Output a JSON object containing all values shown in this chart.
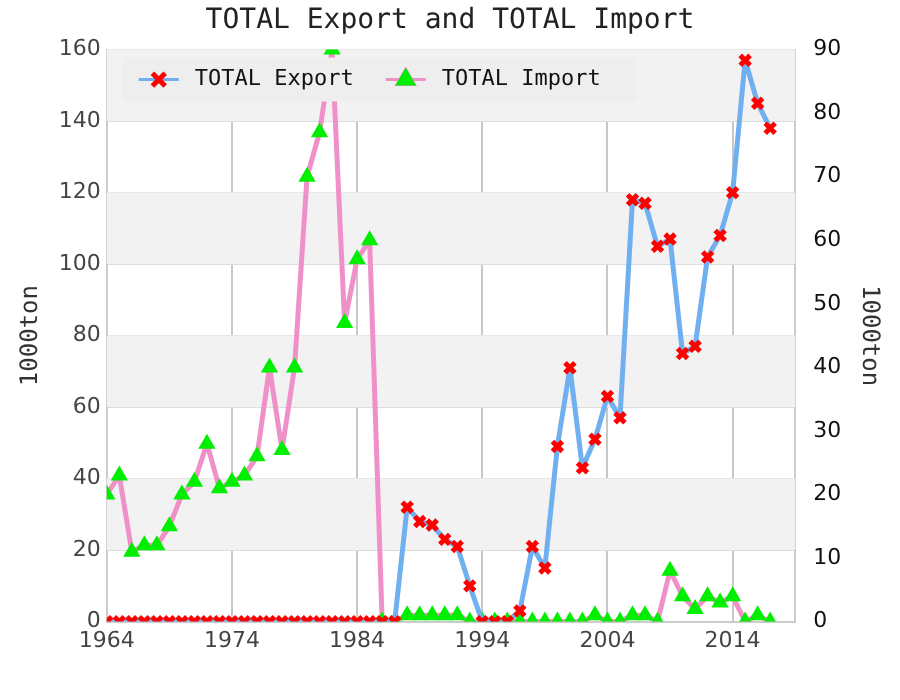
{
  "chart_data": {
    "type": "line",
    "title": "TOTAL Export and TOTAL Import",
    "ylabel": "1000ton",
    "y2label": "1000ton",
    "x": [
      1964,
      1965,
      1966,
      1967,
      1968,
      1969,
      1970,
      1971,
      1972,
      1973,
      1974,
      1975,
      1976,
      1977,
      1978,
      1979,
      1980,
      1981,
      1982,
      1983,
      1984,
      1985,
      1986,
      1987,
      1988,
      1989,
      1990,
      1991,
      1992,
      1993,
      1994,
      1995,
      1996,
      1997,
      1998,
      1999,
      2000,
      2001,
      2002,
      2003,
      2004,
      2005,
      2006,
      2007,
      2008,
      2009,
      2010,
      2011,
      2012,
      2013,
      2014,
      2015,
      2016,
      2017
    ],
    "series": [
      {
        "name": "TOTAL Export",
        "color": "#70b0f0",
        "marker": "cross",
        "colors": [
          "#ff0000",
          "#ff0000",
          "#ff0000",
          "#ff0000",
          "#ff0000",
          "#ff0000",
          "#ff0000",
          "#ff0000",
          "#ff0000",
          "#ff0000",
          "#ff0000",
          "#ff0000",
          "#ff0000",
          "#ff0000",
          "#ff0000",
          "#ff0000",
          "#ff0000",
          "#ff0000",
          "#ff0000",
          "#ff0000",
          "#ff0000",
          "#ff0000",
          "#ff0000",
          "#ff0000",
          "#ff0000",
          "#ff0000",
          "#ff0000",
          "#ff0000",
          "#ff0000",
          "#ff0000",
          "#ff0000",
          "#ff0000",
          "#ff0000",
          "#ff0000",
          "#ff0000",
          "#ff0000",
          "#ff0000",
          "#ff0000",
          "#ff0000",
          "#ff0000",
          "#ff0000",
          "#ff0000",
          "#ff0000",
          "#ff0000",
          "#ff0000",
          "#ff0000",
          "#ff0000",
          "#ff0000",
          "#ff0000",
          "#ff0000",
          "#ff0000",
          "#ff0000",
          "#ff0000",
          "#ff0000"
        ],
        "values": [
          0,
          0,
          0,
          0,
          0,
          0,
          0,
          0,
          0,
          0,
          0,
          0,
          0,
          0,
          0,
          0,
          0,
          0,
          0,
          0,
          0,
          0,
          0,
          0,
          32,
          28,
          27,
          23,
          21,
          10,
          0,
          0,
          0,
          3,
          21,
          15,
          49,
          71,
          43,
          51,
          63,
          57,
          118,
          117,
          105,
          107,
          75,
          77,
          102,
          108,
          120,
          157,
          145,
          138
        ]
      },
      {
        "name": "TOTAL Import",
        "color": "#f090c8",
        "marker": "triangle",
        "axis": "y2",
        "colors": [
          "#00ee00",
          "#00ee00",
          "#00ee00",
          "#00ee00",
          "#00ee00",
          "#00ee00",
          "#00ee00",
          "#00ee00",
          "#00ee00",
          "#00ee00",
          "#00ee00",
          "#00ee00",
          "#00ee00",
          "#00ee00",
          "#00ee00",
          "#00ee00",
          "#00ee00",
          "#00ee00",
          "#00ee00",
          "#00ee00",
          "#00ee00",
          "#00ee00",
          "#00ee00",
          "#00ee00",
          "#00ee00",
          "#00ee00",
          "#00ee00",
          "#00ee00",
          "#00ee00",
          "#00ee00",
          "#00ee00",
          "#00ee00",
          "#00ee00",
          "#00ee00",
          "#00ee00",
          "#00ee00",
          "#00ee00",
          "#00ee00",
          "#00ee00",
          "#00ee00",
          "#00ee00",
          "#00ee00",
          "#00ee00",
          "#00ee00",
          "#00ee00",
          "#00ee00",
          "#00ee00",
          "#00ee00",
          "#00ee00",
          "#00ee00",
          "#00ee00",
          "#00ee00",
          "#00ee00",
          "#00ee00"
        ],
        "values": [
          20,
          23,
          11,
          12,
          12,
          15,
          20,
          22,
          28,
          21,
          22,
          23,
          26,
          40,
          27,
          40,
          70,
          77,
          90,
          47,
          57,
          60,
          0,
          0,
          1,
          1,
          1,
          1,
          1,
          0,
          0,
          0,
          0,
          0,
          0,
          0,
          0,
          0,
          0,
          1,
          0,
          0,
          1,
          1,
          0,
          8,
          4,
          2,
          4,
          3,
          4,
          0,
          1,
          0
        ]
      }
    ],
    "xlim": [
      1964,
      2019
    ],
    "xticks": [
      1964,
      1974,
      1984,
      1994,
      2004,
      2014
    ],
    "ylim": [
      0,
      160
    ],
    "yticks": [
      0,
      20,
      40,
      60,
      80,
      100,
      120,
      140,
      160
    ],
    "y2lim": [
      0,
      90
    ],
    "y2ticks": [
      0,
      10,
      20,
      30,
      40,
      50,
      60,
      70,
      80,
      90
    ],
    "grid": true,
    "legend": "top left",
    "line_style": "solid"
  }
}
